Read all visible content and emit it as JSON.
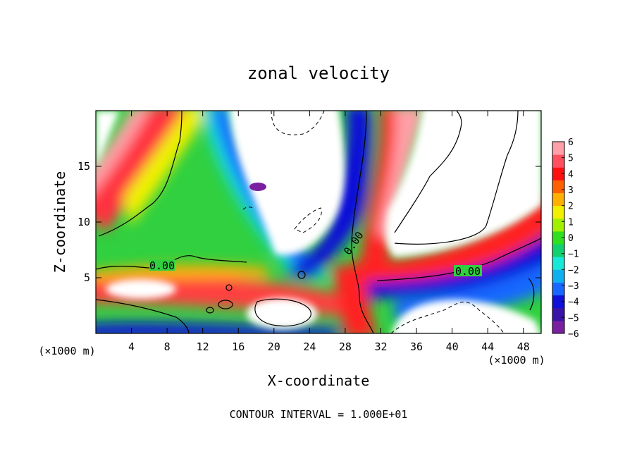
{
  "chart_data": {
    "type": "heatmap",
    "title": "zonal velocity",
    "xlabel": "X-coordinate",
    "ylabel": "Z-coordinate",
    "x_unit": "(×1000 m)",
    "x_unit_right": "(×1000 m)",
    "footer": "CONTOUR INTERVAL = 1.000E+01",
    "xlim": [
      0,
      50
    ],
    "ylim": [
      0,
      20
    ],
    "x_ticks": [
      4,
      8,
      12,
      16,
      20,
      24,
      28,
      32,
      36,
      40,
      44,
      48
    ],
    "y_ticks": [
      5,
      10,
      15
    ],
    "colorbar": {
      "range": [
        -6,
        6
      ],
      "ticks": [
        6,
        5,
        4,
        3,
        2,
        1,
        0,
        -1,
        -2,
        -3,
        -4,
        -5,
        -6
      ],
      "colors": [
        "#7a1fa0",
        "#3a14a8",
        "#1010d8",
        "#1868ff",
        "#10b0f0",
        "#18e8d8",
        "#10d070",
        "#30e020",
        "#a0f000",
        "#f0f000",
        "#ffb000",
        "#ff6000",
        "#ff1010",
        "#ff5060",
        "#ffa0a8"
      ]
    },
    "contour_labels": [
      "0.00",
      "0.00",
      "0.00"
    ],
    "grid": false,
    "legend": "colorbar-right"
  }
}
